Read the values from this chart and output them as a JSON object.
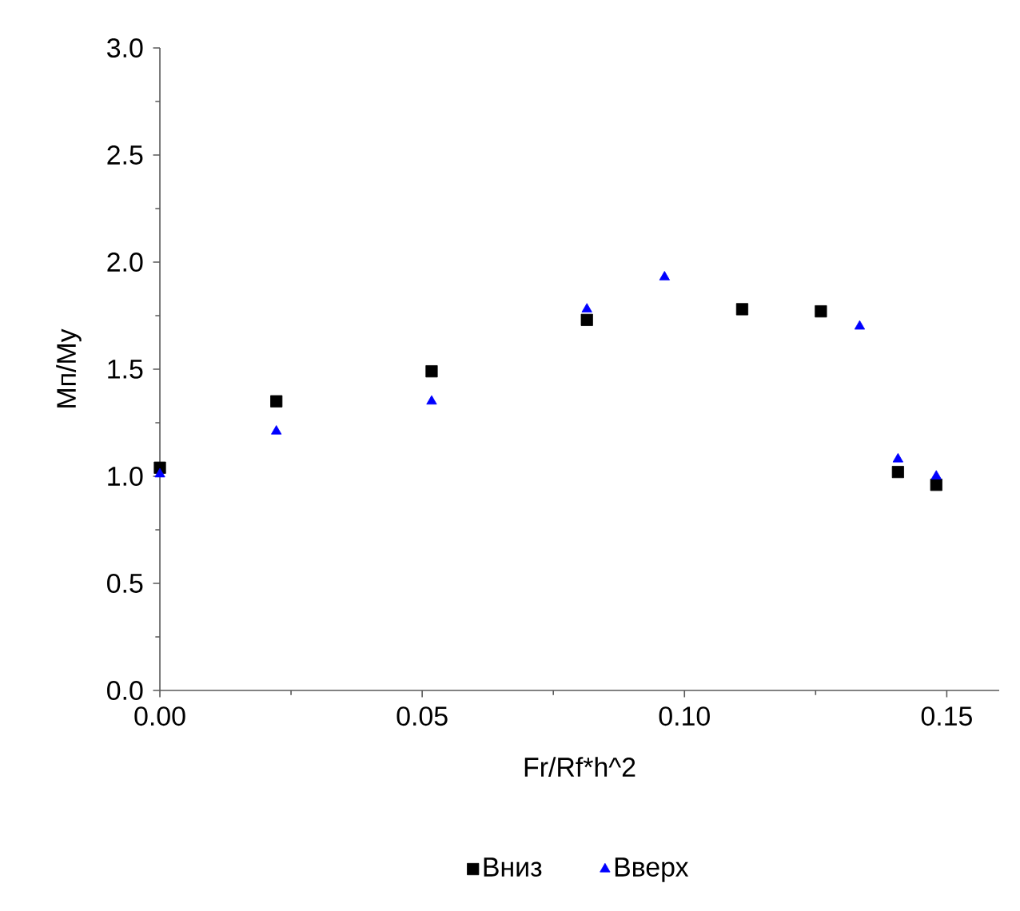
{
  "chart_data": {
    "type": "scatter",
    "xlabel": "Fr/Rf*h^2",
    "ylabel": "Mп/Mу",
    "xlim": [
      0,
      0.16
    ],
    "xticks": [
      {
        "value": 0,
        "label": "0.00"
      },
      0.05,
      {
        "value": 0.1,
        "label": "0.10"
      },
      0.15
    ],
    "ylim": [
      0,
      3
    ],
    "yticks": [
      {
        "value": 0,
        "label": "0.0"
      },
      0.5,
      {
        "value": 1,
        "label": "1.0"
      },
      1.5,
      {
        "value": 2,
        "label": "2.0"
      },
      2.5,
      {
        "value": 3,
        "label": "3.0"
      }
    ],
    "grid": false,
    "legend": "bottom",
    "series": [
      {
        "name": "Вниз",
        "color": "#000000",
        "marker": "square",
        "x": [
          0,
          0.0222,
          0.0518,
          0.0814,
          0.111,
          0.126,
          0.1407,
          0.148
        ],
        "values": [
          1.04,
          1.35,
          1.49,
          1.73,
          1.78,
          1.77,
          1.02,
          0.96
        ]
      },
      {
        "name": "Вверх",
        "color": "#0000ff",
        "marker": "triangle",
        "x": [
          0,
          0.0222,
          0.0518,
          0.0814,
          0.0962,
          0.1334,
          0.1407,
          0.148
        ],
        "values": [
          1.01,
          1.21,
          1.35,
          1.78,
          1.93,
          1.7,
          1.08,
          1.0
        ]
      }
    ]
  }
}
